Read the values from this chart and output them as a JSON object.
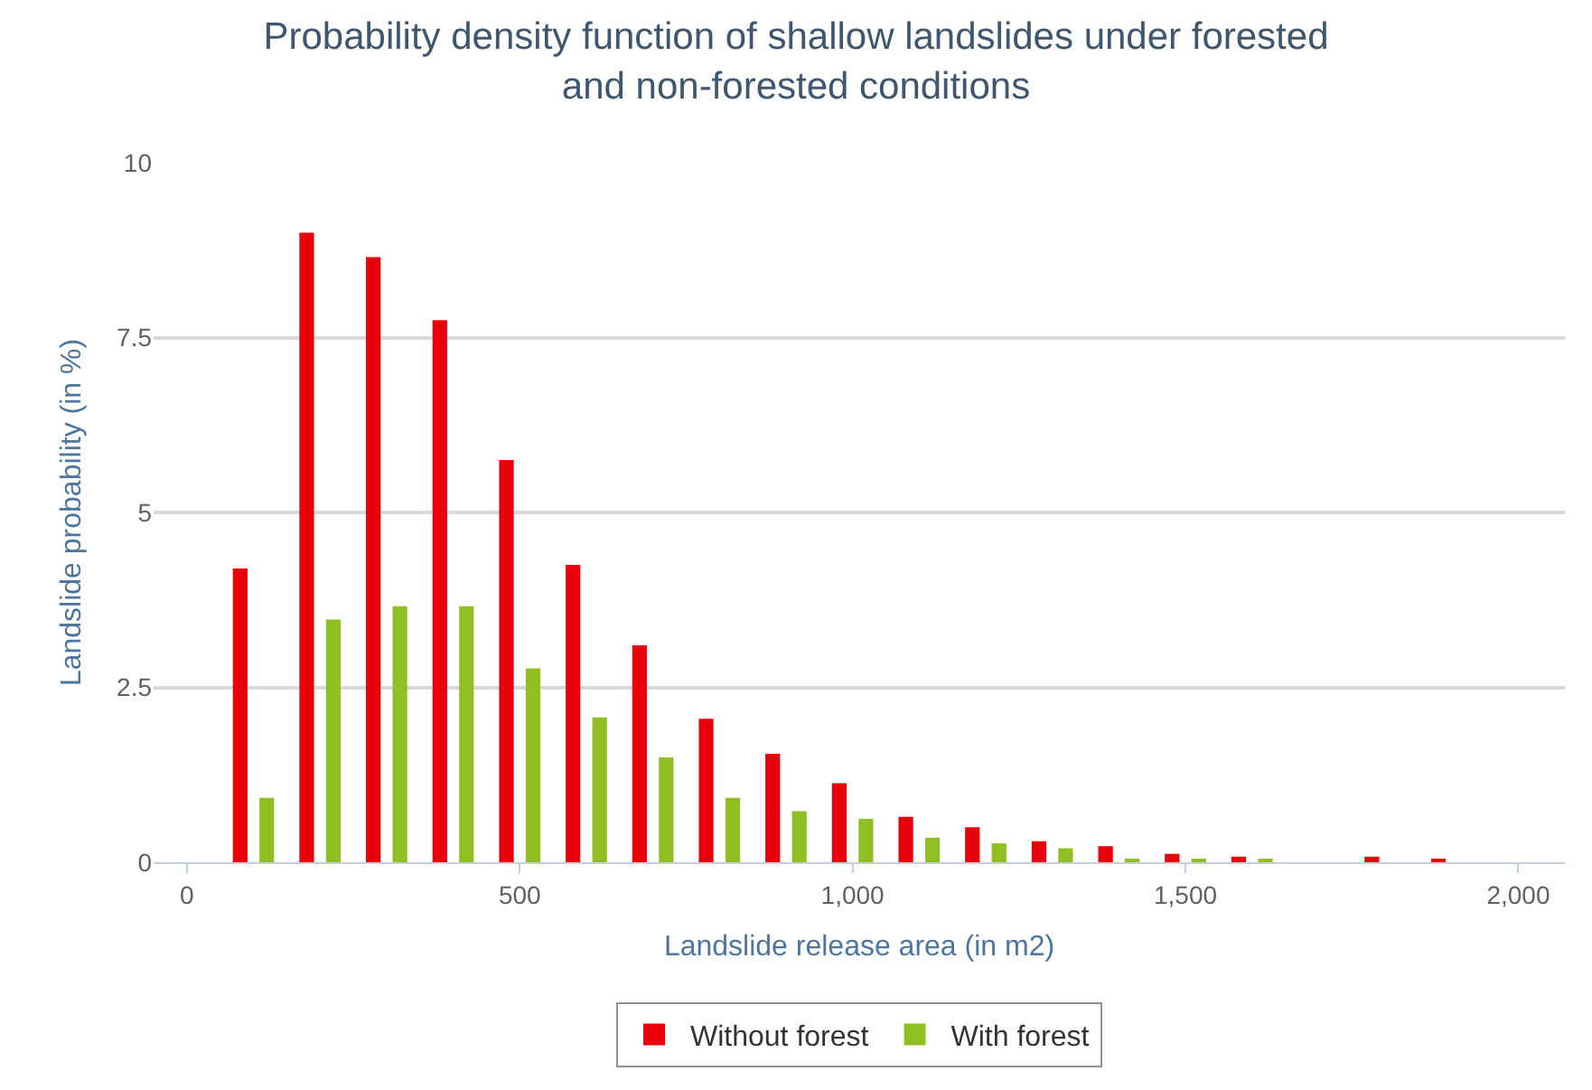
{
  "chart_data": {
    "type": "bar",
    "title": "Probability density function of shallow landslides under forested\nand non-forested conditions",
    "xlabel": "Landslide release area (in m2)",
    "ylabel": "Landslide probability (in %)",
    "x": [
      100,
      200,
      300,
      400,
      500,
      600,
      700,
      800,
      900,
      1000,
      1100,
      1200,
      1300,
      1400,
      1500,
      1600,
      1700,
      1800,
      1900
    ],
    "series": [
      {
        "name": "Without forest",
        "color": "#e8000b",
        "values": [
          4.2,
          9.0,
          8.65,
          7.75,
          5.75,
          4.25,
          3.1,
          2.05,
          1.55,
          1.13,
          0.65,
          0.5,
          0.3,
          0.23,
          0.12,
          0.08,
          null,
          0.08,
          0.05
        ]
      },
      {
        "name": "With forest",
        "color": "#8fbf22",
        "values": [
          0.92,
          3.47,
          3.66,
          3.66,
          2.77,
          2.07,
          1.5,
          0.92,
          0.73,
          0.62,
          0.35,
          0.27,
          0.2,
          0.03,
          0.03,
          0.03,
          null,
          null,
          null
        ]
      }
    ],
    "xlim": [
      -50,
      2070
    ],
    "xticks": [
      0,
      500,
      {
        "value": 1000,
        "label": "1,000"
      },
      {
        "value": 1500,
        "label": "1,500"
      },
      {
        "value": 2000,
        "label": "2,000"
      }
    ],
    "ylim": [
      0,
      10
    ],
    "yticks": [
      0,
      2.5,
      5,
      7.5,
      10
    ],
    "grid": "y",
    "legend": "bottom"
  }
}
